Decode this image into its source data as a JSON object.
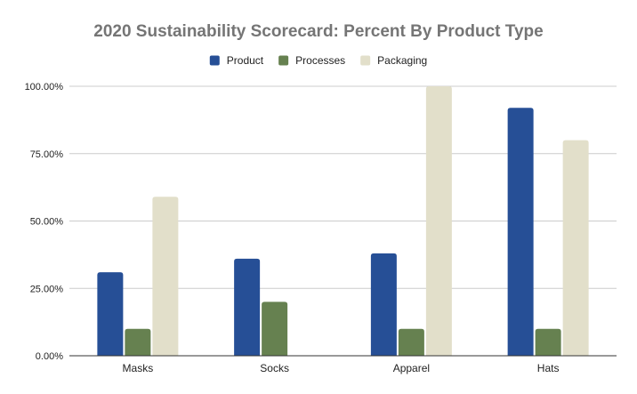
{
  "chart_data": {
    "type": "bar",
    "title": "2020 Sustainability Scorecard: Percent By Product Type",
    "categories": [
      "Masks",
      "Socks",
      "Apparel",
      "Hats"
    ],
    "series": [
      {
        "name": "Product",
        "color": "#264f96",
        "values": [
          31,
          36,
          38,
          92
        ]
      },
      {
        "name": "Processes",
        "color": "#668150",
        "values": [
          10,
          20,
          10,
          10
        ]
      },
      {
        "name": "Packaging",
        "color": "#e2dfca",
        "values": [
          59,
          0,
          100,
          80
        ]
      }
    ],
    "ylim": [
      0,
      100
    ],
    "yticks": [
      0,
      25,
      50,
      75,
      100
    ],
    "ytick_labels": [
      "0.00%",
      "25.00%",
      "50.00%",
      "75.00%",
      "100.00%"
    ],
    "grid": true,
    "legend_position": "top-center",
    "xlabel": "",
    "ylabel": ""
  }
}
